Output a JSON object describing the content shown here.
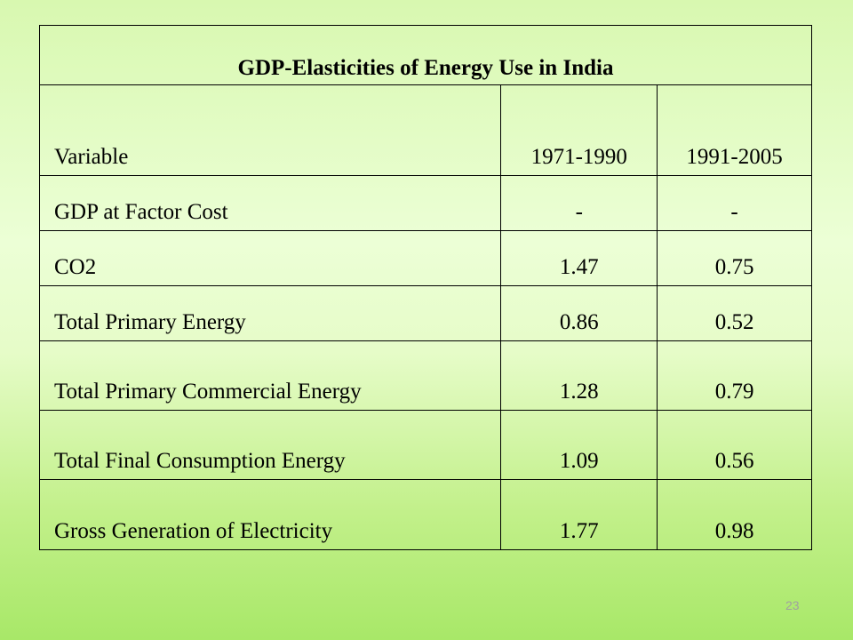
{
  "table": {
    "title": "GDP-Elasticities of Energy Use in India",
    "columns": [
      "Variable",
      "1971-1990",
      "1991-2005"
    ],
    "rows": [
      [
        "GDP at Factor Cost",
        "-",
        "-"
      ],
      [
        "CO2",
        "1.47",
        "0.75"
      ],
      [
        "Total Primary Energy",
        "0.86",
        "0.52"
      ],
      [
        "Total Primary Commercial Energy",
        "1.28",
        "0.79"
      ],
      [
        "Total Final Consumption Energy",
        "1.09",
        "0.56"
      ],
      [
        "Gross Generation of Electricity",
        "1.77",
        "0.98"
      ]
    ]
  },
  "page_number": "23"
}
